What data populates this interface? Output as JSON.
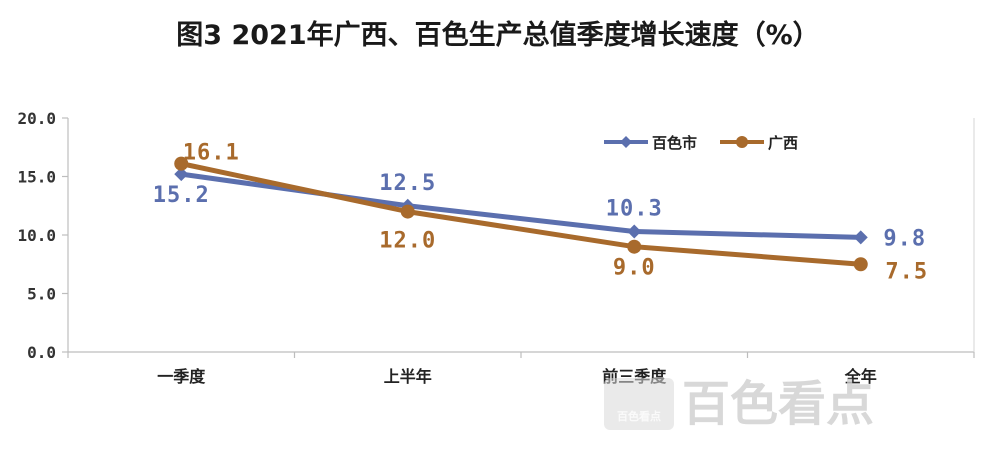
{
  "chart_data": {
    "type": "line",
    "title": "图3 2021年广西、百色生产总值季度增长速度（%）",
    "categories": [
      "一季度",
      "上半年",
      "前三季度",
      "全年"
    ],
    "ylim": [
      0,
      20
    ],
    "y_ticks": [
      "0.0",
      "5.0",
      "10.0",
      "15.0",
      "20.0"
    ],
    "grid": false,
    "legend_position": "top-right",
    "series": [
      {
        "name": "百色市",
        "values": [
          15.2,
          12.5,
          10.3,
          9.8
        ],
        "labels": [
          "15.2",
          "12.5",
          "10.3",
          "9.8"
        ],
        "color": "#5b6fae",
        "marker": "diamond"
      },
      {
        "name": "广西",
        "values": [
          16.1,
          12.0,
          9.0,
          7.5
        ],
        "labels": [
          "16.1",
          "12.0",
          "9.0",
          "7.5"
        ],
        "color": "#a86a2c",
        "marker": "circle"
      }
    ]
  },
  "watermark": {
    "text": "百色看点",
    "small_text": "百色看点"
  }
}
